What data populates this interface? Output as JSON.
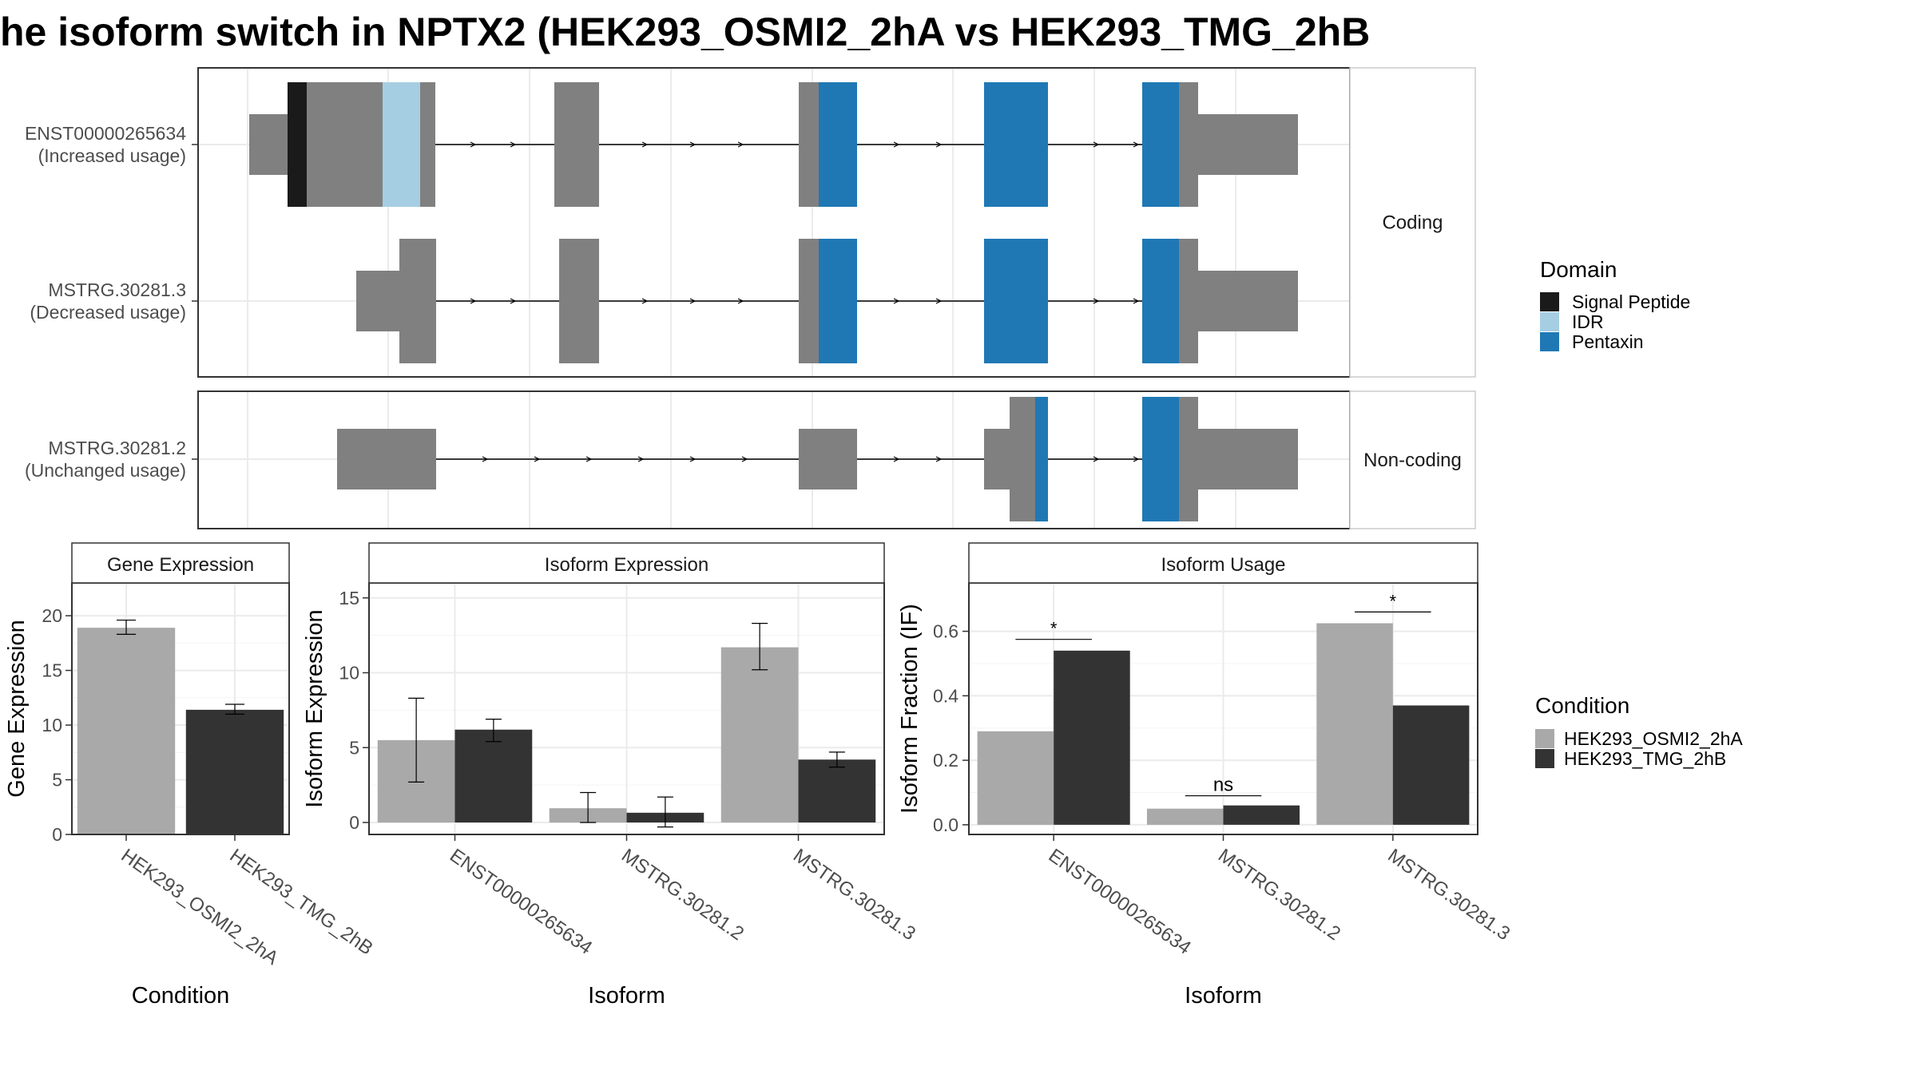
{
  "title": "he isoform switch in NPTX2 (HEK293_OSMI2_2hA vs HEK293_TMG_2hB",
  "colors": {
    "exon": "#808080",
    "signal_peptide": "#1a1a1a",
    "idr": "#a6cee3",
    "pentaxin": "#1f78b4",
    "cond_a": "#a9a9a9",
    "cond_b": "#333333",
    "grid": "#ebebeb",
    "strip_bg": "#ffffff",
    "panel_border": "#333333"
  },
  "structure": {
    "panels": [
      {
        "strip": "Coding",
        "isoforms": [
          {
            "name": "ENST00000265634",
            "label": "(Increased usage)"
          },
          {
            "name": "MSTRG.30281.3",
            "label": "(Decreased usage)"
          }
        ]
      },
      {
        "strip": "Non-coding",
        "isoforms": [
          {
            "name": "MSTRG.30281.2",
            "label": "(Unchanged usage)"
          }
        ]
      }
    ]
  },
  "domain_legend": {
    "title": "Domain",
    "items": [
      {
        "label": "Signal Peptide",
        "color": "#1a1a1a"
      },
      {
        "label": "IDR",
        "color": "#a6cee3"
      },
      {
        "label": "Pentaxin",
        "color": "#1f78b4"
      }
    ]
  },
  "condition_legend": {
    "title": "Condition",
    "items": [
      {
        "label": "HEK293_OSMI2_2hA",
        "color": "#a9a9a9"
      },
      {
        "label": "HEK293_TMG_2hB",
        "color": "#333333"
      }
    ]
  },
  "chart_data": [
    {
      "type": "bar",
      "title": "Gene Expression",
      "xlabel": "Condition",
      "ylabel": "Gene Expression",
      "ylim": [
        0,
        23
      ],
      "yticks": [
        0,
        5,
        10,
        15,
        20
      ],
      "categories": [
        "HEK293_OSMI2_2hA",
        "HEK293_TMG_2hB"
      ],
      "values": [
        18.9,
        11.4
      ],
      "errors": [
        [
          18.3,
          19.6
        ],
        [
          11.0,
          11.9
        ]
      ]
    },
    {
      "type": "bar",
      "title": "Isoform Expression",
      "xlabel": "Isoform",
      "ylabel": "Isoform Expression",
      "ylim": [
        -0.8,
        16
      ],
      "yticks": [
        0,
        5,
        10,
        15
      ],
      "categories": [
        "ENST00000265634",
        "MSTRG.30281.2",
        "MSTRG.30281.3"
      ],
      "series": [
        {
          "name": "HEK293_OSMI2_2hA",
          "values": [
            5.5,
            0.95,
            11.7
          ],
          "errors": [
            [
              2.7,
              8.3
            ],
            [
              0.0,
              2.0
            ],
            [
              10.2,
              13.3
            ]
          ]
        },
        {
          "name": "HEK293_TMG_2hB",
          "values": [
            6.2,
            0.65,
            4.2
          ],
          "errors": [
            [
              5.4,
              6.9
            ],
            [
              -0.3,
              1.7
            ],
            [
              3.7,
              4.7
            ]
          ]
        }
      ]
    },
    {
      "type": "bar",
      "title": "Isoform Usage",
      "xlabel": "Isoform",
      "ylabel": "Isoform Fraction (IF)",
      "ylim": [
        -0.03,
        0.75
      ],
      "yticks": [
        "0.0",
        "0.2",
        "0.4",
        "0.6"
      ],
      "categories": [
        "ENST00000265634",
        "MSTRG.30281.2",
        "MSTRG.30281.3"
      ],
      "series": [
        {
          "name": "HEK293_OSMI2_2hA",
          "values": [
            0.29,
            0.05,
            0.625
          ]
        },
        {
          "name": "HEK293_TMG_2hB",
          "values": [
            0.54,
            0.06,
            0.37
          ]
        }
      ],
      "significance": [
        "*",
        "ns",
        "*"
      ],
      "sig_y": [
        0.575,
        0.09,
        0.66
      ]
    }
  ]
}
